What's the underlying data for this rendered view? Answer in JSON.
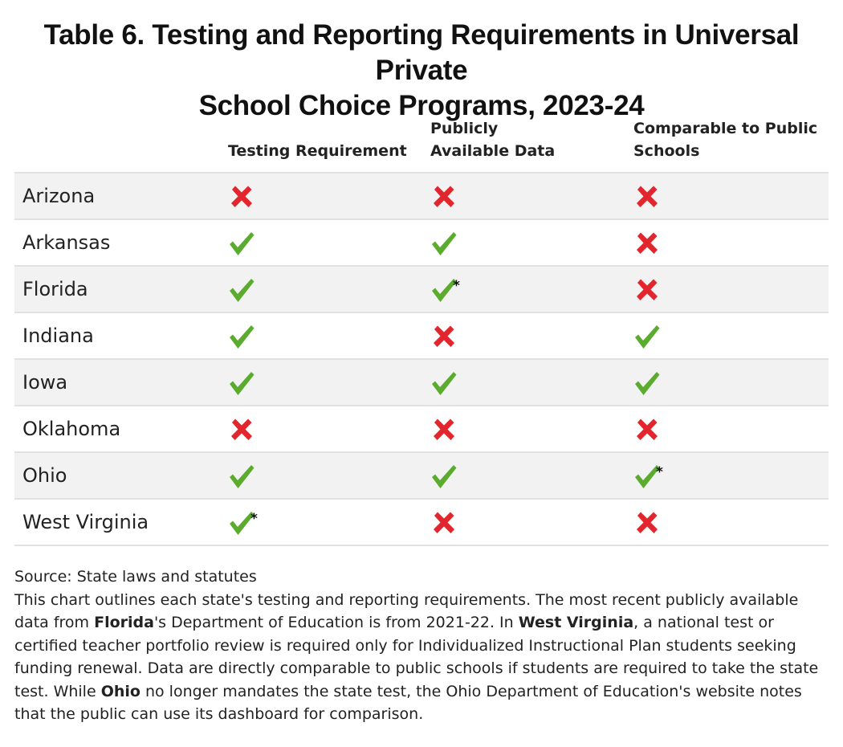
{
  "title": {
    "line1": "Table 6. Testing and Reporting Requirements in Universal Private",
    "line2": "School Choice Programs, 2023-24"
  },
  "columns": [
    {
      "line1": "Testing Requirement",
      "line2": ""
    },
    {
      "line1": "Publicly",
      "line2": "Available Data"
    },
    {
      "line1": "Comparable to Public",
      "line2": "Schools"
    }
  ],
  "colors": {
    "check": "#5aab2e",
    "cross": "#e3262d",
    "row_shade": "#f2f2f2",
    "rule": "#e1e1e1"
  },
  "footnote_marker": "*",
  "rows": [
    {
      "state": "Arizona",
      "values": [
        "no",
        "no",
        "no"
      ],
      "footnotes": [
        false,
        false,
        false
      ]
    },
    {
      "state": "Arkansas",
      "values": [
        "yes",
        "yes",
        "no"
      ],
      "footnotes": [
        false,
        false,
        false
      ]
    },
    {
      "state": "Florida",
      "values": [
        "yes",
        "yes",
        "no"
      ],
      "footnotes": [
        false,
        true,
        false
      ]
    },
    {
      "state": "Indiana",
      "values": [
        "yes",
        "no",
        "yes"
      ],
      "footnotes": [
        false,
        false,
        false
      ]
    },
    {
      "state": "Iowa",
      "values": [
        "yes",
        "yes",
        "yes"
      ],
      "footnotes": [
        false,
        false,
        false
      ]
    },
    {
      "state": "Oklahoma",
      "values": [
        "no",
        "no",
        "no"
      ],
      "footnotes": [
        false,
        false,
        false
      ]
    },
    {
      "state": "Ohio",
      "values": [
        "yes",
        "yes",
        "yes"
      ],
      "footnotes": [
        false,
        false,
        true
      ]
    },
    {
      "state": "West Virginia",
      "values": [
        "yes",
        "no",
        "no"
      ],
      "footnotes": [
        true,
        false,
        false
      ]
    }
  ],
  "notes": {
    "source": "Source: State laws and statutes",
    "p1": "This chart outlines each state's testing and reporting requirements. The most recent publicly available data from ",
    "florida": "Florida",
    "p2": "'s Department of Education is from 2021-22. In ",
    "west_virginia": "West Virginia",
    "p3": ", a national test or certified teacher portfolio review is required only for Individualized Instructional Plan students seeking funding renewal. Data are directly comparable to public schools if students are required to take the state test. While ",
    "ohio": "Ohio",
    "p4": " no longer mandates the state test, the Ohio Department of Education's website notes that the public can use its dashboard for comparison."
  }
}
